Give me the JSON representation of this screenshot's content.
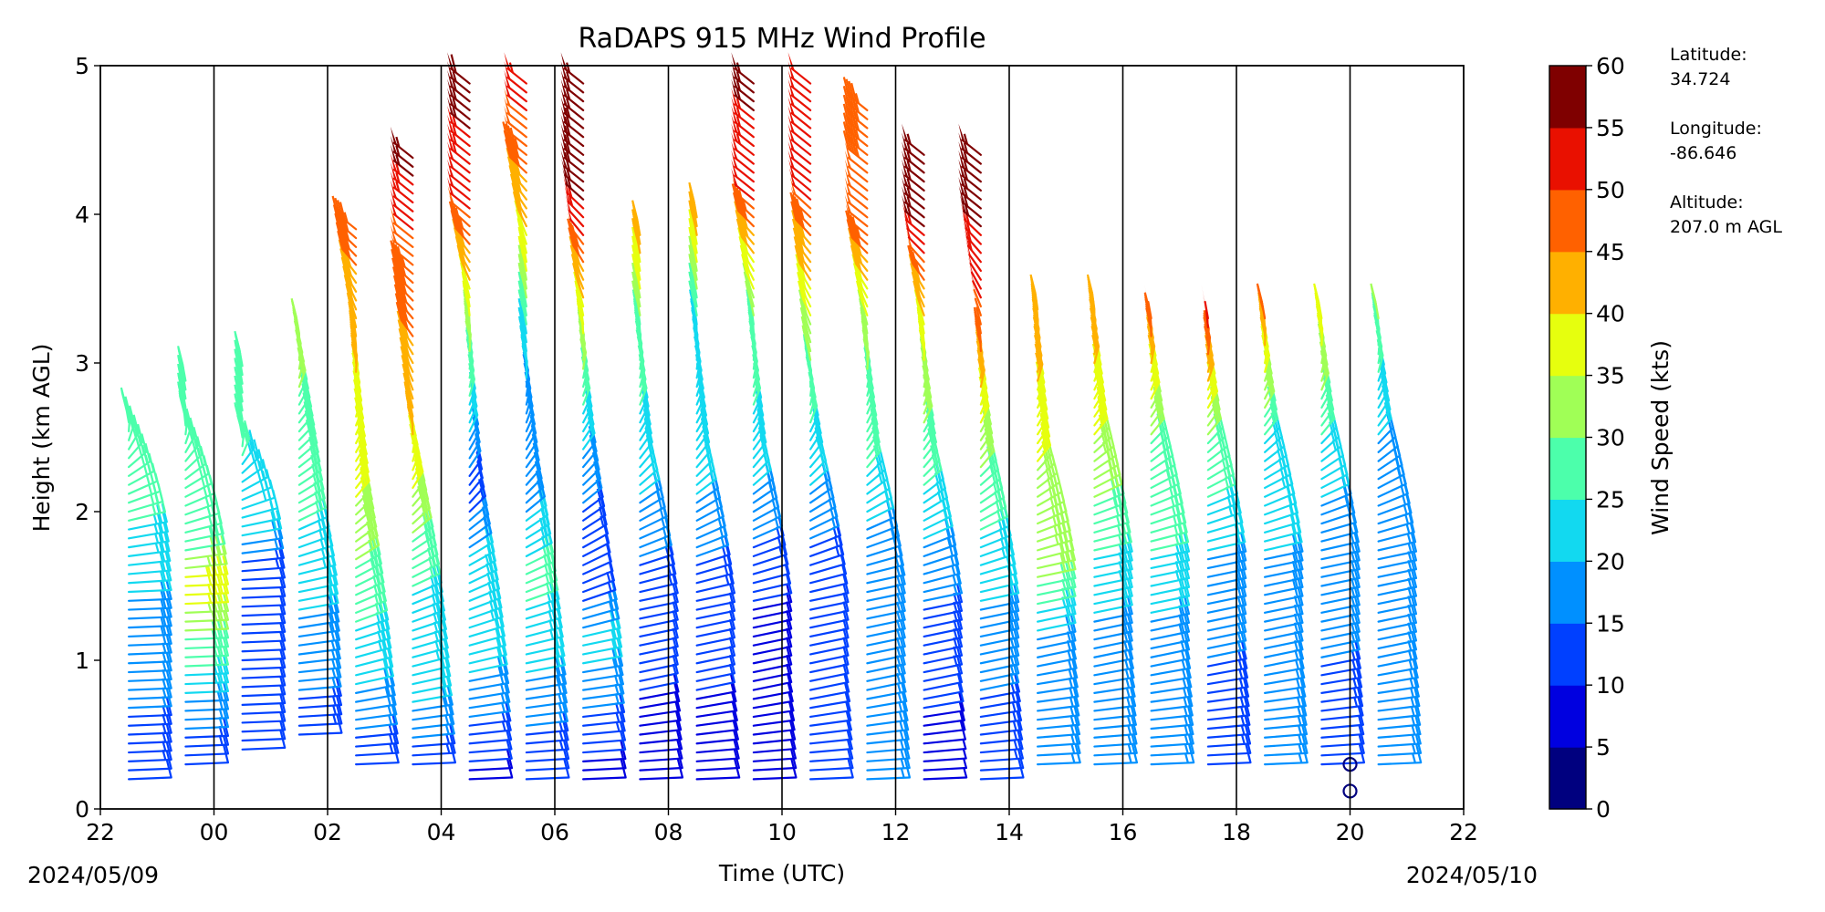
{
  "chart_data": {
    "type": "wind_barb_profile",
    "title": "RaDAPS 915 MHz Wind Profile",
    "xlabel": "Time (UTC)",
    "ylabel": "Height (km AGL)",
    "xlim_hours_since_start": [
      0,
      24
    ],
    "ylim_km": [
      0,
      5
    ],
    "x_tick_labels": [
      "22",
      "00",
      "02",
      "04",
      "06",
      "08",
      "10",
      "12",
      "14",
      "16",
      "18",
      "20",
      "22"
    ],
    "y_tick_labels": [
      "0",
      "1",
      "2",
      "3",
      "4",
      "5"
    ],
    "date_labels": {
      "start": "2024/05/09",
      "end": "2024/05/10"
    },
    "vertical_gridlines": true,
    "colorbar": {
      "label": "Wind Speed (kts)",
      "tick_labels": [
        "0",
        "5",
        "10",
        "15",
        "20",
        "25",
        "30",
        "35",
        "40",
        "45",
        "50",
        "55",
        "60"
      ],
      "colors": [
        "#00007f",
        "#0000e0",
        "#0040ff",
        "#0090ff",
        "#12d9f0",
        "#4cffab",
        "#a0ff56",
        "#e6ff0e",
        "#ffb000",
        "#ff6100",
        "#e91000",
        "#7f0000"
      ]
    },
    "station_info": [
      {
        "label": "Latitude:",
        "value": "34.724"
      },
      {
        "label": "Longitude:",
        "value": "-86.646"
      },
      {
        "label": "Altitude:",
        "value": "207.0 m AGL"
      }
    ],
    "profiles": [
      {
        "time": "22:30",
        "layers": [
          [
            0.2,
            3,
            12
          ],
          [
            1.45,
            3,
            20
          ],
          [
            1.9,
            4,
            25
          ],
          [
            2.6,
            7,
            28
          ]
        ]
      },
      {
        "time": "23:30",
        "layers": [
          [
            0.3,
            3,
            10
          ],
          [
            1.5,
            3,
            38
          ],
          [
            1.8,
            4,
            25
          ],
          [
            2.6,
            7,
            28
          ],
          [
            2.9,
            7,
            30
          ]
        ]
      },
      {
        "time": "00:30",
        "layers": [
          [
            0.4,
            3,
            10
          ],
          [
            1.5,
            3,
            10
          ],
          [
            1.9,
            4,
            22
          ],
          [
            2.5,
            7,
            26
          ],
          [
            3.0,
            7,
            28
          ]
        ]
      },
      {
        "time": "01:30",
        "layers": [
          [
            0.5,
            3,
            12
          ],
          [
            1.5,
            4,
            22
          ],
          [
            1.9,
            5,
            25
          ],
          [
            3.2,
            7,
            32
          ]
        ]
      },
      {
        "time": "02:30",
        "layers": [
          [
            0.3,
            3,
            12
          ],
          [
            0.8,
            4,
            20
          ],
          [
            2.1,
            6,
            35
          ],
          [
            3.2,
            7,
            42
          ],
          [
            3.9,
            8,
            47
          ]
        ]
      },
      {
        "time": "03:30",
        "layers": [
          [
            0.3,
            3,
            12
          ],
          [
            0.8,
            4,
            22
          ],
          [
            1.5,
            5,
            25
          ],
          [
            2.6,
            7,
            42
          ],
          [
            3.7,
            8,
            48
          ],
          [
            4.4,
            8,
            57
          ]
        ]
      },
      {
        "time": "04:30",
        "layers": [
          [
            0.2,
            3,
            8
          ],
          [
            0.9,
            4,
            20
          ],
          [
            1.5,
            5,
            25
          ],
          [
            2.1,
            6,
            12
          ],
          [
            3.4,
            7,
            37
          ],
          [
            4.0,
            8,
            50
          ],
          [
            4.9,
            8,
            58
          ]
        ]
      },
      {
        "time": "05:30",
        "layers": [
          [
            0.2,
            3,
            10
          ],
          [
            1.0,
            4,
            22
          ],
          [
            1.6,
            5,
            27
          ],
          [
            2.2,
            6,
            15
          ],
          [
            3.1,
            7,
            22
          ],
          [
            3.7,
            7,
            37
          ],
          [
            4.4,
            8,
            47
          ],
          [
            4.9,
            8,
            53
          ]
        ]
      },
      {
        "time": "06:30",
        "layers": [
          [
            0.2,
            3,
            8
          ],
          [
            1.1,
            4,
            22
          ],
          [
            1.6,
            5,
            10
          ],
          [
            2.3,
            6,
            18
          ],
          [
            3.3,
            7,
            37
          ],
          [
            4.2,
            8,
            58
          ],
          [
            4.9,
            8,
            57
          ]
        ]
      },
      {
        "time": "07:30",
        "layers": [
          [
            0.2,
            3,
            8
          ],
          [
            0.8,
            4,
            10
          ],
          [
            1.4,
            4,
            12
          ],
          [
            2.3,
            6,
            22
          ],
          [
            3.3,
            7,
            30
          ],
          [
            3.9,
            7,
            45
          ]
        ]
      },
      {
        "time": "08:30",
        "layers": [
          [
            0.2,
            3,
            8
          ],
          [
            0.8,
            4,
            10
          ],
          [
            1.4,
            4,
            12
          ],
          [
            2.3,
            6,
            22
          ],
          [
            3.3,
            7,
            25
          ],
          [
            4.0,
            7,
            45
          ]
        ]
      },
      {
        "time": "09:30",
        "layers": [
          [
            0.2,
            3,
            8
          ],
          [
            0.8,
            4,
            8
          ],
          [
            1.4,
            4,
            10
          ],
          [
            2.3,
            6,
            22
          ],
          [
            3.3,
            7,
            30
          ],
          [
            4.1,
            8,
            50
          ],
          [
            4.9,
            8,
            57
          ]
        ]
      },
      {
        "time": "10:30",
        "layers": [
          [
            0.2,
            3,
            10
          ],
          [
            0.8,
            4,
            10
          ],
          [
            1.4,
            4,
            10
          ],
          [
            2.3,
            6,
            22
          ],
          [
            3.0,
            7,
            30
          ],
          [
            4.2,
            8,
            52
          ],
          [
            4.9,
            8,
            50
          ]
        ]
      },
      {
        "time": "11:30",
        "layers": [
          [
            0.2,
            3,
            15
          ],
          [
            0.8,
            4,
            15
          ],
          [
            1.5,
            4,
            15
          ],
          [
            2.3,
            6,
            25
          ],
          [
            3.2,
            7,
            32
          ],
          [
            3.9,
            8,
            50
          ],
          [
            4.7,
            8,
            45
          ]
        ]
      },
      {
        "time": "12:30",
        "layers": [
          [
            0.2,
            3,
            5
          ],
          [
            0.8,
            4,
            12
          ],
          [
            1.4,
            4,
            15
          ],
          [
            2.3,
            6,
            27
          ],
          [
            3.2,
            7,
            37
          ],
          [
            3.9,
            8,
            55
          ],
          [
            4.4,
            8,
            57
          ]
        ]
      },
      {
        "time": "13:30",
        "layers": [
          [
            0.2,
            3,
            12
          ],
          [
            0.8,
            4,
            15
          ],
          [
            1.4,
            4,
            20
          ],
          [
            2.3,
            6,
            30
          ],
          [
            3.2,
            7,
            48
          ],
          [
            4.0,
            8,
            56
          ],
          [
            4.4,
            8,
            56
          ]
        ]
      },
      {
        "time": "14:30",
        "layers": [
          [
            0.3,
            3,
            15
          ],
          [
            1.0,
            4,
            15
          ],
          [
            1.6,
            4,
            32
          ],
          [
            2.3,
            6,
            35
          ],
          [
            3.4,
            7,
            45
          ]
        ]
      },
      {
        "time": "15:30",
        "layers": [
          [
            0.3,
            3,
            15
          ],
          [
            1.0,
            4,
            17
          ],
          [
            1.7,
            4,
            25
          ],
          [
            2.5,
            6,
            35
          ],
          [
            3.4,
            7,
            45
          ]
        ]
      },
      {
        "time": "16:30",
        "layers": [
          [
            0.3,
            3,
            15
          ],
          [
            1.0,
            4,
            17
          ],
          [
            1.7,
            4,
            25
          ],
          [
            2.5,
            6,
            30
          ],
          [
            3.3,
            7,
            48
          ]
        ]
      },
      {
        "time": "17:30",
        "layers": [
          [
            0.3,
            3,
            12
          ],
          [
            1.0,
            4,
            15
          ],
          [
            1.7,
            4,
            20
          ],
          [
            2.5,
            6,
            30
          ],
          [
            3.3,
            7,
            52
          ]
        ]
      },
      {
        "time": "18:30",
        "layers": [
          [
            0.3,
            3,
            15
          ],
          [
            1.0,
            4,
            15
          ],
          [
            1.7,
            4,
            20
          ],
          [
            2.5,
            6,
            25
          ],
          [
            3.3,
            7,
            45
          ]
        ]
      },
      {
        "time": "19:30",
        "layers": [
          [
            0.3,
            3,
            10
          ],
          [
            1.0,
            4,
            15
          ],
          [
            1.7,
            4,
            15
          ],
          [
            2.5,
            6,
            25
          ],
          [
            3.3,
            7,
            38
          ]
        ]
      },
      {
        "time": "20:30",
        "layers": [
          [
            0.3,
            3,
            15
          ],
          [
            1.0,
            4,
            15
          ],
          [
            1.7,
            4,
            15
          ],
          [
            2.5,
            6,
            20
          ],
          [
            3.3,
            7,
            30
          ]
        ]
      }
    ],
    "calm_markers_km": [
      0.12,
      0.3
    ]
  }
}
